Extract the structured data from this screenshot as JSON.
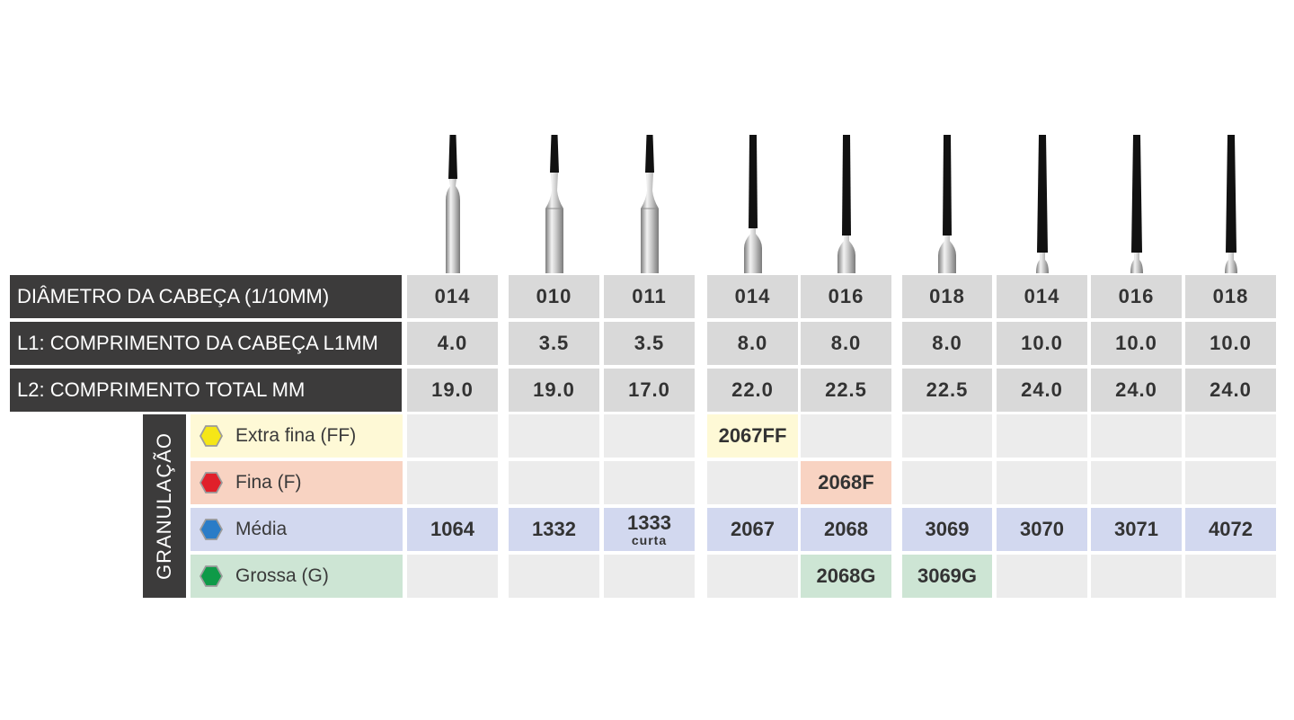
{
  "header_rows": [
    "DIÂMETRO DA CABEÇA (1/10MM)",
    "L1: COMPRIMENTO DA CABEÇA L1MM",
    "L2: COMPRIMENTO TOTAL MM"
  ],
  "specs": {
    "diameter": [
      "014",
      "010",
      "011",
      "014",
      "016",
      "018",
      "014",
      "016",
      "018"
    ],
    "head_length": [
      "4.0",
      "3.5",
      "3.5",
      "8.0",
      "8.0",
      "8.0",
      "10.0",
      "10.0",
      "10.0"
    ],
    "total_length": [
      "19.0",
      "19.0",
      "17.0",
      "22.0",
      "22.5",
      "22.5",
      "24.0",
      "24.0",
      "24.0"
    ]
  },
  "granulation": {
    "title": "GRANULAÇÃO",
    "levels": [
      {
        "label": "Extra fina (FF)",
        "icon": "yellow-hexagon-icon",
        "color": "#f5e617",
        "bg": "#fef9d6"
      },
      {
        "label": "Fina (F)",
        "icon": "red-hexagon-icon",
        "color": "#e0202a",
        "bg": "#f8d3c2"
      },
      {
        "label": "Média",
        "icon": "blue-hexagon-icon",
        "color": "#2a7cc7",
        "bg": "#d2d8ef"
      },
      {
        "label": "Grossa (G)",
        "icon": "green-hexagon-icon",
        "color": "#0e9a48",
        "bg": "#cde5d4"
      }
    ],
    "codes": [
      [
        "",
        "",
        "",
        "2067FF",
        "",
        "",
        "",
        "",
        ""
      ],
      [
        "",
        "",
        "",
        "",
        "2068F",
        "",
        "",
        "",
        ""
      ],
      [
        "1064",
        "1332",
        "1333",
        "2067",
        "2068",
        "3069",
        "3070",
        "3071",
        "4072"
      ],
      [
        "",
        "",
        "",
        "",
        "2068G",
        "3069G",
        "",
        "",
        ""
      ]
    ],
    "subtext": [
      [
        "",
        "",
        "",
        "",
        "",
        "",
        "",
        "",
        ""
      ],
      [
        "",
        "",
        "",
        "",
        "",
        "",
        "",
        "",
        ""
      ],
      [
        "",
        "",
        "curta",
        "",
        "",
        "",
        "",
        "",
        ""
      ],
      [
        "",
        "",
        "",
        "",
        "",
        "",
        "",
        "",
        ""
      ]
    ]
  },
  "burs": [
    {
      "head_shape": "short-taper",
      "head_fraction": 0.33,
      "shank": "long-thin"
    },
    {
      "head_shape": "short-taper",
      "head_fraction": 0.28,
      "shank": "long-flared"
    },
    {
      "head_shape": "short-taper",
      "head_fraction": 0.28,
      "shank": "long-flared"
    },
    {
      "head_shape": "long-taper",
      "head_fraction": 0.68,
      "shank": "short-thin"
    },
    {
      "head_shape": "long-taper",
      "head_fraction": 0.73,
      "shank": "short-thin"
    },
    {
      "head_shape": "long-taper",
      "head_fraction": 0.73,
      "shank": "short-thin"
    },
    {
      "head_shape": "long-taper",
      "head_fraction": 0.85,
      "shank": "stub"
    },
    {
      "head_shape": "long-taper",
      "head_fraction": 0.85,
      "shank": "stub"
    },
    {
      "head_shape": "long-taper",
      "head_fraction": 0.85,
      "shank": "stub"
    }
  ],
  "colors": {
    "header_bg": "#3c3b3b",
    "spec_bg": "#d9d9d9",
    "empty_bg": "#ececec",
    "bur_head": "#111111",
    "metal": "#b9b9b9"
  }
}
